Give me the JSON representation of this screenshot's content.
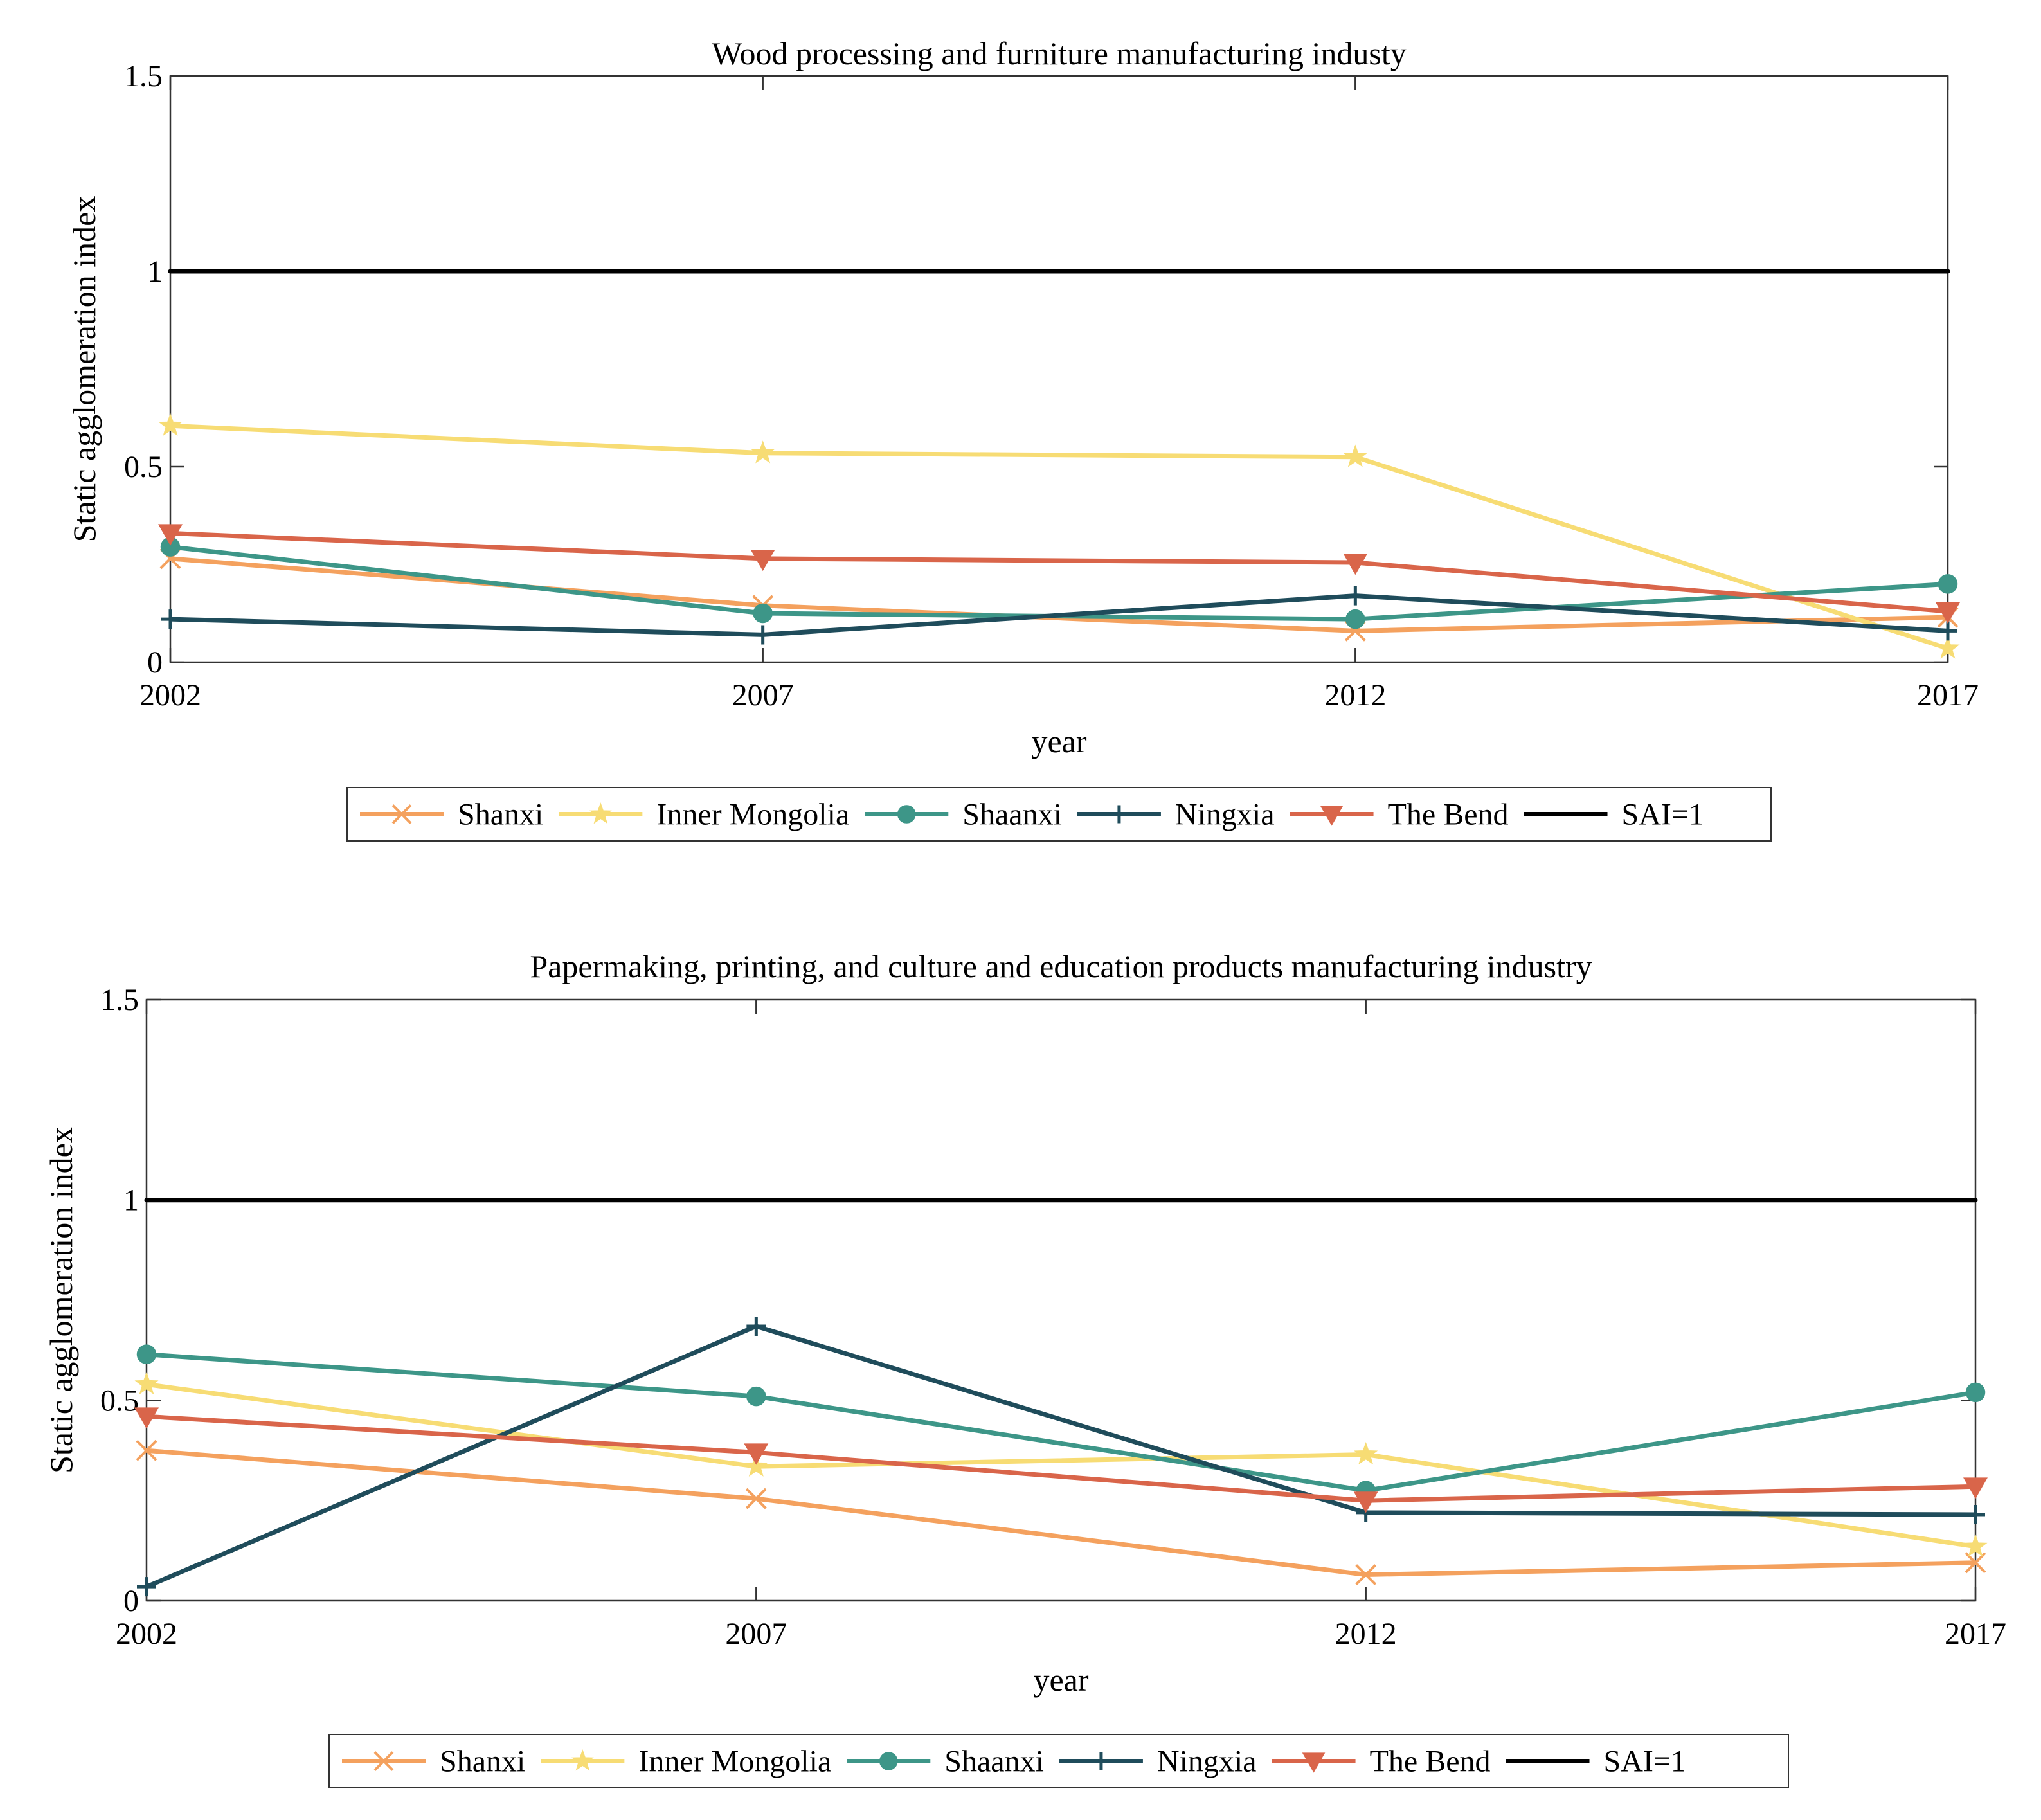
{
  "colors": {
    "Shanxi": "#f4a15e",
    "Inner Mongolia": "#f7dc74",
    "Shaanxi": "#3d9688",
    "Ningxia": "#1f4c5b",
    "The Bend": "#d9654a",
    "SAI=1": "#000000"
  },
  "markers": {
    "Shanxi": "x",
    "Inner Mongolia": "star",
    "Shaanxi": "circle",
    "Ningxia": "plus",
    "The Bend": "triangle-down",
    "SAI=1": "none"
  },
  "chart_data": [
    {
      "type": "line",
      "title": "Wood processing and furniture manufacturing industy",
      "xlabel": "year",
      "ylabel": "Static agglomeration index",
      "x": [
        2002,
        2007,
        2012,
        2017
      ],
      "xticks": [
        "2002",
        "2007",
        "2012",
        "2017"
      ],
      "yticks": [
        "0",
        "0.5",
        "1",
        "1.5"
      ],
      "ylim": [
        0,
        1.5
      ],
      "grid": false,
      "legend_position": "bottom",
      "series": [
        {
          "name": "Shanxi",
          "values": [
            0.265,
            0.145,
            0.08,
            0.115
          ]
        },
        {
          "name": "Inner Mongolia",
          "values": [
            0.605,
            0.535,
            0.525,
            0.035
          ]
        },
        {
          "name": "Shaanxi",
          "values": [
            0.295,
            0.125,
            0.11,
            0.2
          ]
        },
        {
          "name": "Ningxia",
          "values": [
            0.11,
            0.07,
            0.17,
            0.08
          ]
        },
        {
          "name": "The Bend",
          "values": [
            0.33,
            0.265,
            0.255,
            0.13
          ]
        },
        {
          "name": "SAI=1",
          "values": [
            1,
            1,
            1,
            1
          ]
        }
      ]
    },
    {
      "type": "line",
      "title": "Papermaking, printing, and culture and education products manufacturing industry",
      "xlabel": "year",
      "ylabel": "Static agglomeration index",
      "x": [
        2002,
        2007,
        2012,
        2017
      ],
      "xticks": [
        "2002",
        "2007",
        "2012",
        "2017"
      ],
      "yticks": [
        "0",
        "0.5",
        "1",
        "1.5"
      ],
      "ylim": [
        0,
        1.5
      ],
      "grid": false,
      "legend_position": "bottom",
      "series": [
        {
          "name": "Shanxi",
          "values": [
            0.375,
            0.255,
            0.065,
            0.095
          ]
        },
        {
          "name": "Inner Mongolia",
          "values": [
            0.54,
            0.335,
            0.365,
            0.135
          ]
        },
        {
          "name": "Shaanxi",
          "values": [
            0.615,
            0.51,
            0.275,
            0.52
          ]
        },
        {
          "name": "Ningxia",
          "values": [
            0.035,
            0.685,
            0.22,
            0.215
          ]
        },
        {
          "name": "The Bend",
          "values": [
            0.46,
            0.37,
            0.25,
            0.285
          ]
        },
        {
          "name": "SAI=1",
          "values": [
            1,
            1,
            1,
            1
          ]
        }
      ]
    }
  ]
}
